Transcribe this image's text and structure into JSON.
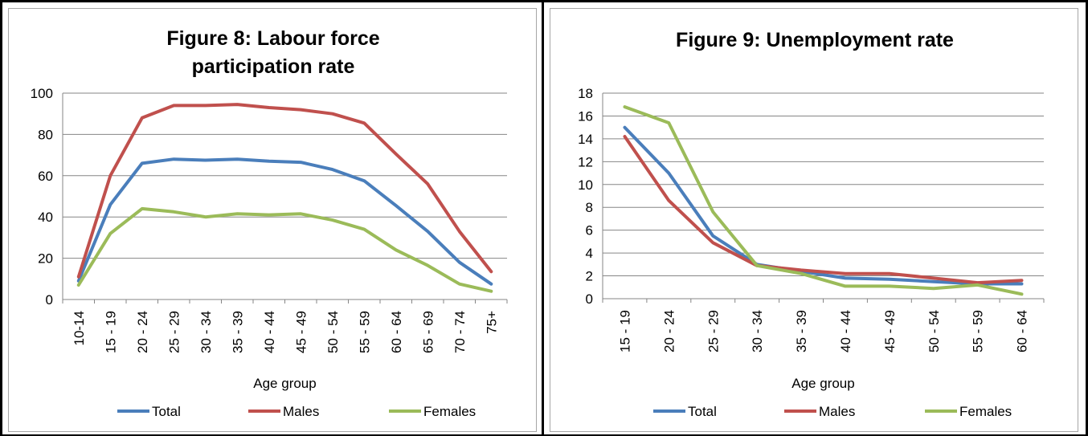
{
  "chart_data": [
    {
      "type": "line",
      "title_lines": [
        "Figure 8: Labour force",
        "participation rate"
      ],
      "xlabel": "Age group",
      "ylabel": "",
      "ylim": [
        0,
        100
      ],
      "yticks": [
        0,
        20,
        40,
        60,
        80,
        100
      ],
      "grid": true,
      "legend_position": "bottom",
      "categories": [
        "10-14",
        "15 - 19",
        "20 - 24",
        "25 - 29",
        "30 - 34",
        "35 - 39",
        "40 - 44",
        "45 - 49",
        "50 - 54",
        "55 - 59",
        "60 - 64",
        "65 - 69",
        "70 - 74",
        "75+"
      ],
      "series": [
        {
          "name": "Total",
          "color": "#4a7ebb",
          "values": [
            9,
            46,
            66,
            68,
            67.5,
            68,
            67,
            66.5,
            63,
            57.5,
            45.5,
            33,
            18,
            7.5
          ]
        },
        {
          "name": "Males",
          "color": "#c0504d",
          "values": [
            11,
            60,
            88,
            94,
            94,
            94.5,
            93,
            92,
            90,
            85.5,
            70.5,
            56,
            33,
            13.5
          ]
        },
        {
          "name": "Females",
          "color": "#9bbb59",
          "values": [
            7,
            32,
            44,
            42.5,
            40,
            41.5,
            41,
            41.5,
            38.5,
            34,
            24,
            16.5,
            7.5,
            4
          ]
        }
      ]
    },
    {
      "type": "line",
      "title_lines": [
        "Figure 9: Unemployment rate"
      ],
      "xlabel": "Age group",
      "ylabel": "",
      "ylim": [
        0,
        18
      ],
      "yticks": [
        0,
        2,
        4,
        6,
        8,
        10,
        12,
        14,
        16,
        18
      ],
      "grid": true,
      "legend_position": "bottom",
      "categories": [
        "15 - 19",
        "20 - 24",
        "25 - 29",
        "30 - 34",
        "35 - 39",
        "40 - 44",
        "45 - 49",
        "50 - 54",
        "55 - 59",
        "60 - 64"
      ],
      "series": [
        {
          "name": "Total",
          "color": "#4a7ebb",
          "values": [
            15,
            11,
            5.5,
            3,
            2.4,
            1.8,
            1.7,
            1.5,
            1.3,
            1.3
          ]
        },
        {
          "name": "Males",
          "color": "#c0504d",
          "values": [
            14.2,
            8.6,
            4.9,
            2.9,
            2.5,
            2.2,
            2.2,
            1.8,
            1.4,
            1.6
          ]
        },
        {
          "name": "Females",
          "color": "#9bbb59",
          "values": [
            16.8,
            15.4,
            7.6,
            2.9,
            2.2,
            1.1,
            1.1,
            0.9,
            1.2,
            0.4
          ]
        }
      ]
    }
  ]
}
